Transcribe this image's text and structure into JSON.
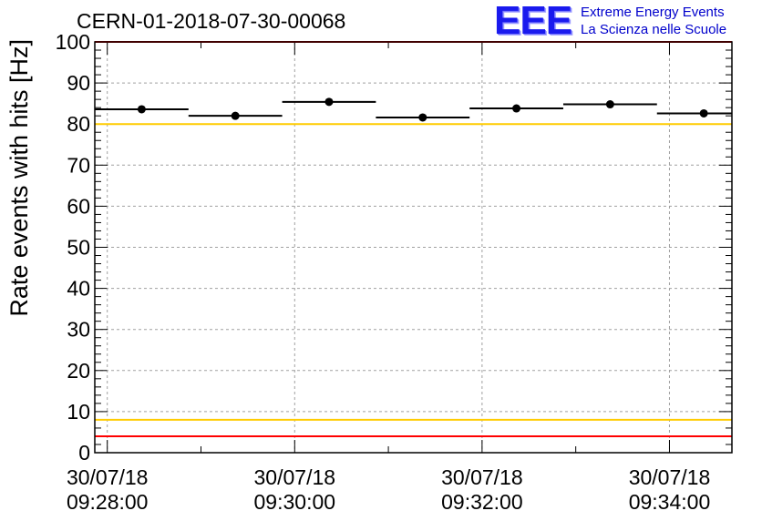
{
  "header": {
    "run_title": "CERN-01-2018-07-30-00068",
    "logo_mark": "EEE",
    "logo_line1": "Extreme Energy Events",
    "logo_line2": "La Scienza nelle Scuole",
    "logo_color": "#1a1aee"
  },
  "chart_data": {
    "type": "scatter",
    "title": "CERN-01-2018-07-30-00068",
    "xlabel": "",
    "ylabel": "Rate events with hits [Hz]",
    "ylim": [
      0,
      100
    ],
    "y_ticks": [
      "0",
      "10",
      "20",
      "30",
      "40",
      "50",
      "60",
      "70",
      "80",
      "90",
      "100"
    ],
    "xlim": [
      "09:27:52",
      "09:34:40"
    ],
    "x_ticks": [
      {
        "date": "30/07/18",
        "time": "09:28:00"
      },
      {
        "date": "30/07/18",
        "time": "09:30:00"
      },
      {
        "date": "30/07/18",
        "time": "09:32:00"
      },
      {
        "date": "30/07/18",
        "time": "09:34:00"
      }
    ],
    "grid": true,
    "series": [
      {
        "marker": "filled-circle",
        "color": "#000000",
        "points": [
          {
            "x_start": "09:27:52",
            "x_end": "09:28:52",
            "y": 83.6,
            "y_err": 0.6
          },
          {
            "x_start": "09:28:52",
            "x_end": "09:29:52",
            "y": 82.0,
            "y_err": 0.6
          },
          {
            "x_start": "09:29:52",
            "x_end": "09:30:52",
            "y": 85.4,
            "y_err": 0.6
          },
          {
            "x_start": "09:30:52",
            "x_end": "09:31:52",
            "y": 81.6,
            "y_err": 0.6
          },
          {
            "x_start": "09:31:52",
            "x_end": "09:32:52",
            "y": 83.8,
            "y_err": 0.6
          },
          {
            "x_start": "09:32:52",
            "x_end": "09:33:52",
            "y": 84.8,
            "y_err": 0.6
          },
          {
            "x_start": "09:33:52",
            "x_end": "09:34:52",
            "y": 82.6,
            "y_err": 0.6
          }
        ]
      }
    ],
    "reference_lines": [
      {
        "y": 100,
        "color": "#ff0000"
      },
      {
        "y": 80,
        "color": "#ffcc00"
      },
      {
        "y": 8,
        "color": "#ffcc00"
      },
      {
        "y": 4,
        "color": "#ff0000"
      }
    ]
  }
}
